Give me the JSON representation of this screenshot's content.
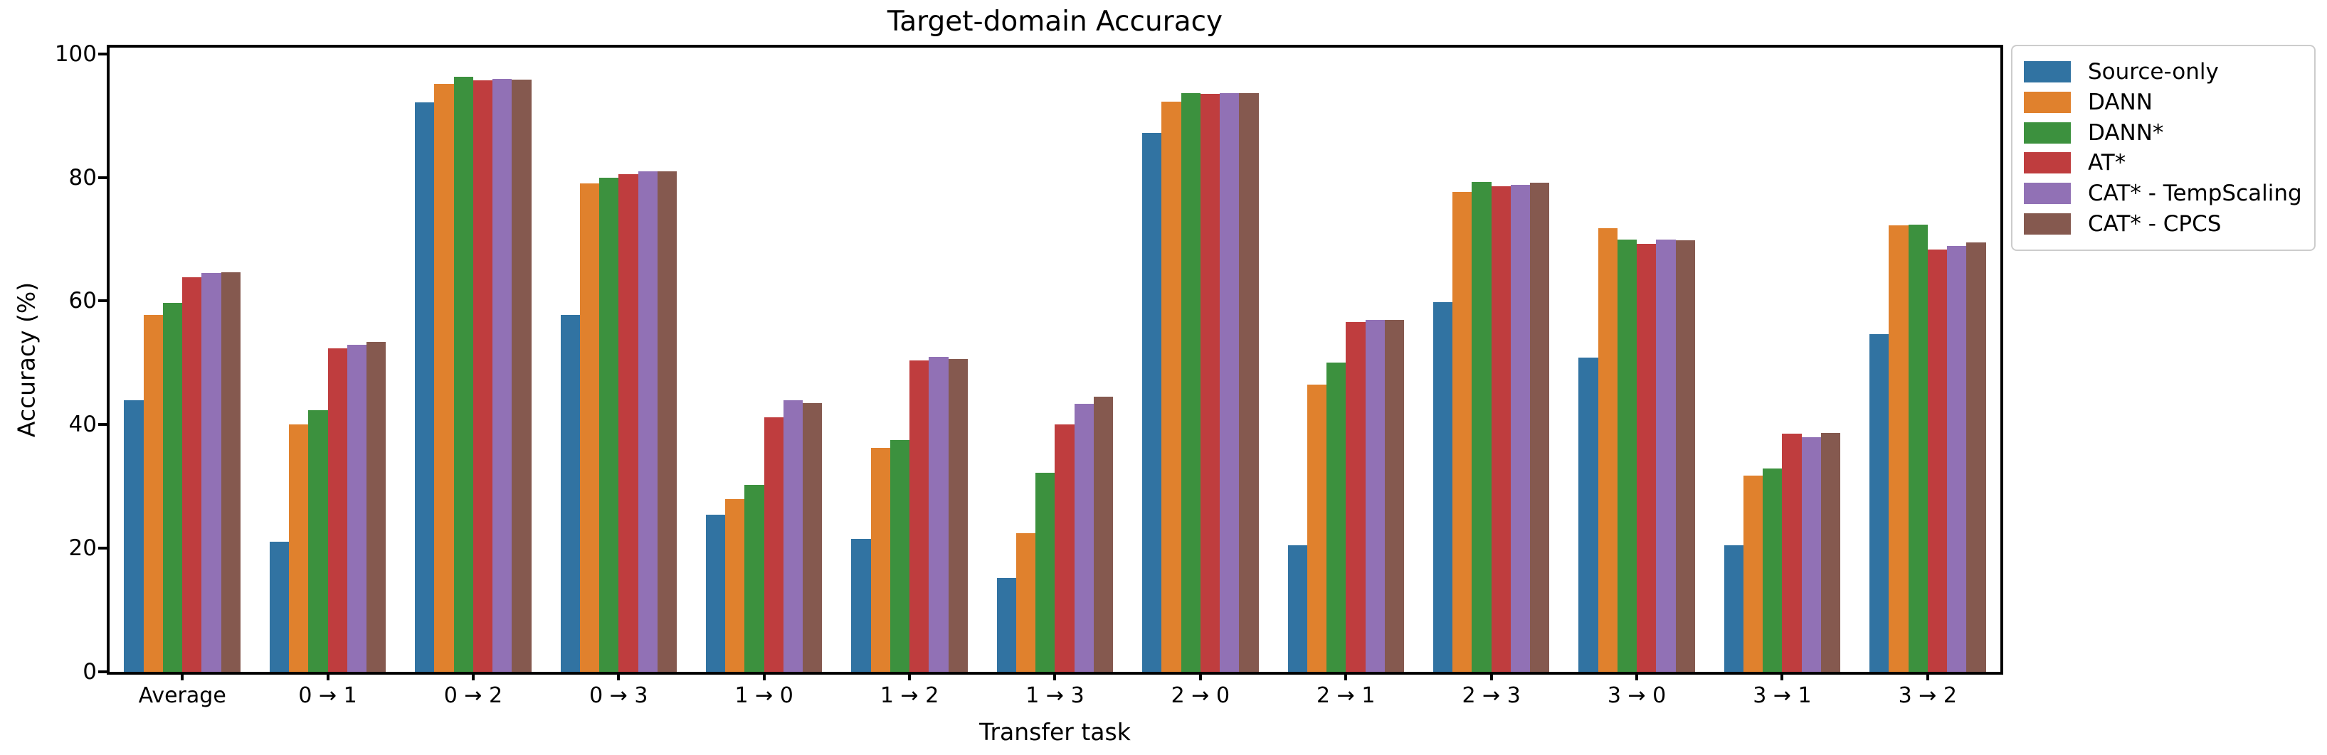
{
  "chart_data": {
    "type": "bar",
    "title": "Target-domain Accuracy",
    "xlabel": "Transfer task",
    "ylabel": "Accuracy (%)",
    "categories": [
      "Average",
      "0 → 1",
      "0 → 2",
      "0 → 3",
      "1 → 0",
      "1 → 2",
      "1 → 3",
      "2 → 0",
      "2 → 1",
      "2 → 3",
      "3 → 0",
      "3 → 1",
      "3 → 2"
    ],
    "yticks": [
      0,
      20,
      40,
      60,
      80,
      100
    ],
    "ylim": [
      0,
      101
    ],
    "grid": false,
    "legend_position": "outside-upper-right",
    "bar_group_fraction": 0.8,
    "series": [
      {
        "name": "Source-only",
        "color": "#3173a2",
        "values": [
          43.9,
          21.0,
          92.1,
          57.8,
          25.4,
          21.5,
          15.2,
          87.2,
          20.5,
          59.8,
          50.9,
          20.5,
          54.6
        ]
      },
      {
        "name": "DANN",
        "color": "#e0812d",
        "values": [
          57.7,
          40.0,
          95.1,
          79.0,
          27.9,
          36.2,
          22.4,
          92.3,
          46.5,
          77.7,
          71.8,
          31.8,
          72.2
        ]
      },
      {
        "name": "DANN*",
        "color": "#3c913e",
        "values": [
          59.7,
          42.3,
          96.3,
          80.0,
          30.2,
          37.5,
          32.2,
          93.6,
          50.0,
          79.3,
          70.0,
          32.9,
          72.4
        ]
      },
      {
        "name": "AT*",
        "color": "#bf3d3e",
        "values": [
          63.8,
          52.3,
          95.7,
          80.5,
          41.2,
          50.4,
          40.0,
          93.5,
          56.6,
          78.6,
          69.3,
          38.5,
          68.3
        ]
      },
      {
        "name": "CAT* - TempScaling",
        "color": "#9171b5",
        "values": [
          64.5,
          52.9,
          95.9,
          81.0,
          44.0,
          51.0,
          43.4,
          93.6,
          57.0,
          78.8,
          70.0,
          38.0,
          68.9
        ]
      },
      {
        "name": "CAT* - CPCS",
        "color": "#85594f",
        "values": [
          64.7,
          53.4,
          95.8,
          81.0,
          43.5,
          50.6,
          44.5,
          93.6,
          56.9,
          79.2,
          69.8,
          38.7,
          69.5
        ]
      }
    ]
  }
}
